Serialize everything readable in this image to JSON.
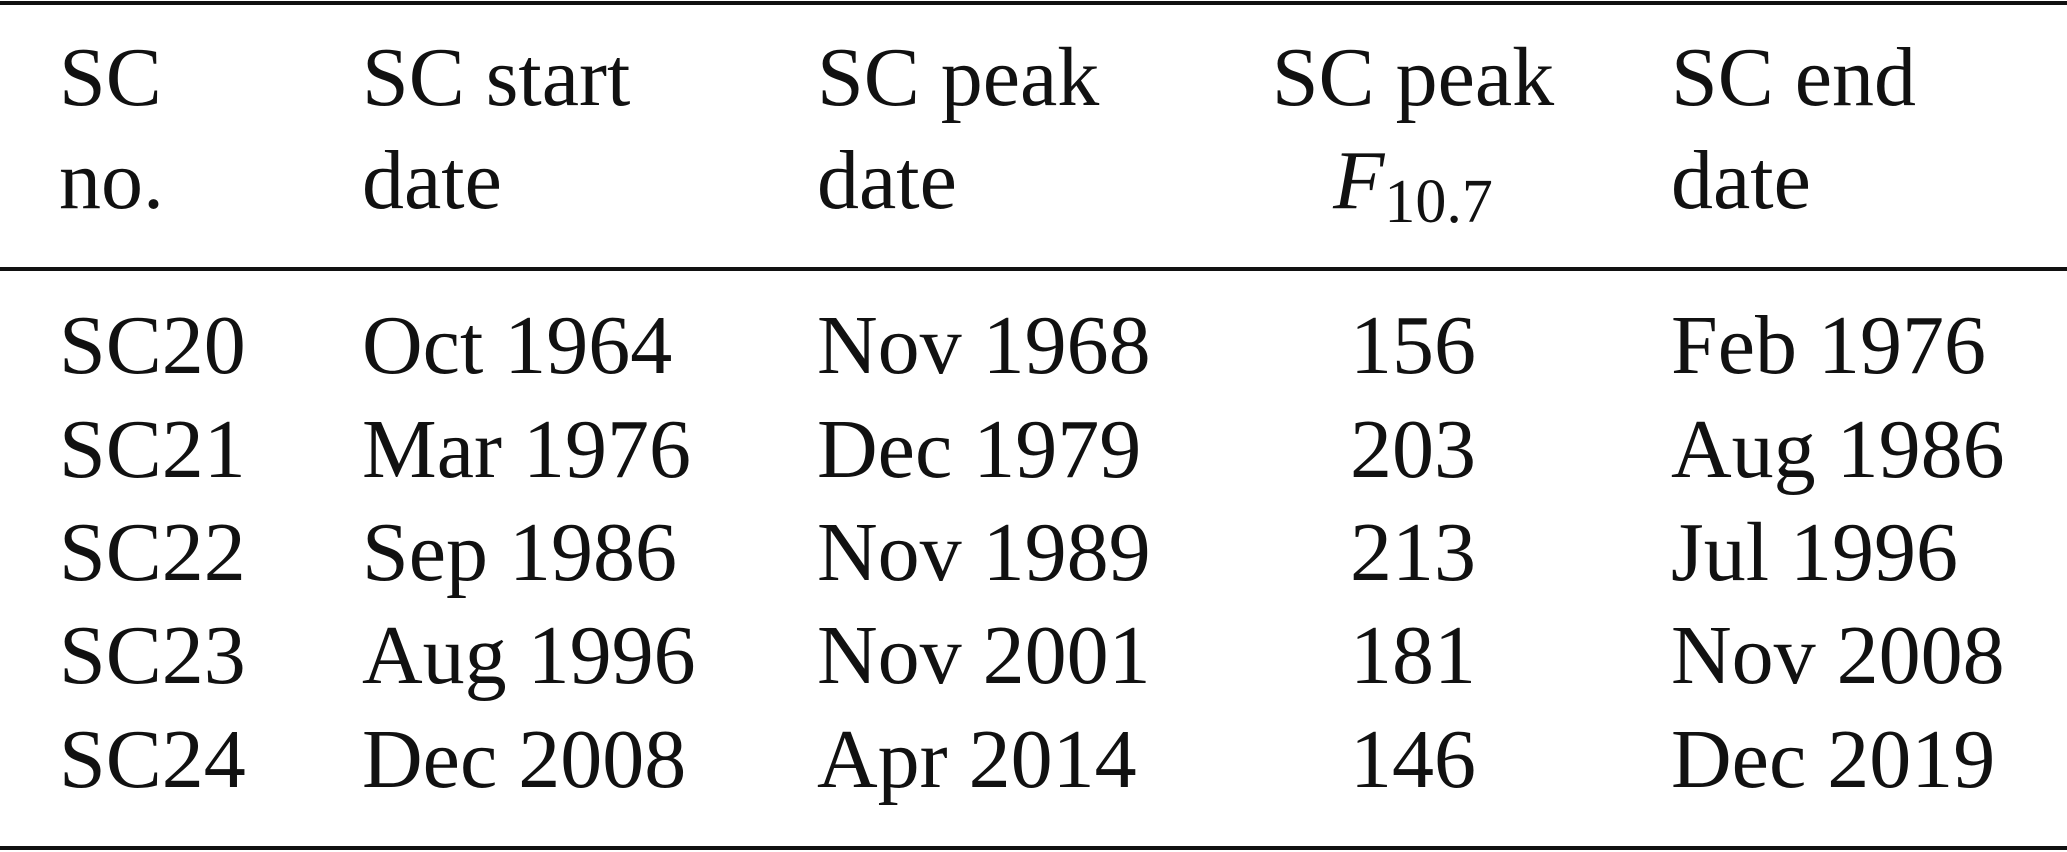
{
  "table": {
    "header": [
      [
        "SC",
        "no."
      ],
      [
        "SC start",
        "date"
      ],
      [
        "SC peak",
        "date"
      ],
      [
        "SC peak",
        {
          "symbol": "F",
          "subscript": "10.7"
        }
      ],
      [
        "SC end",
        "date"
      ]
    ],
    "rows": [
      [
        "SC20",
        "Oct 1964",
        "Nov 1968",
        156,
        "Feb 1976"
      ],
      [
        "SC21",
        "Mar 1976",
        "Dec 1979",
        203,
        "Aug 1986"
      ],
      [
        "SC22",
        "Sep 1986",
        "Nov 1989",
        213,
        "Jul 1996"
      ],
      [
        "SC23",
        "Aug 1996",
        "Nov 2001",
        181,
        "Nov 2008"
      ],
      [
        "SC24",
        "Dec 2008",
        "Apr 2014",
        146,
        "Dec 2019"
      ]
    ]
  }
}
